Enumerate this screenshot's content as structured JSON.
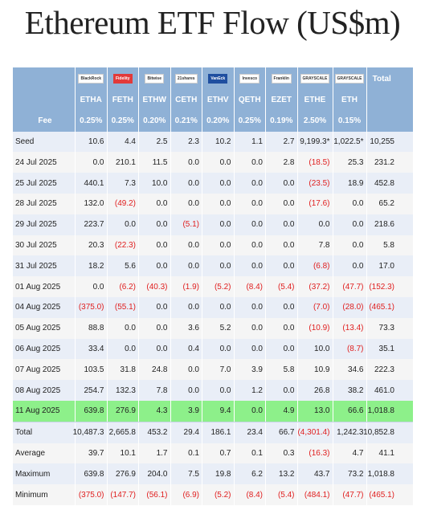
{
  "title": "Ethereum ETF Flow (US$m)",
  "chart_data": {
    "type": "table",
    "issuers": [
      "BlackRock",
      "Fidelity",
      "Bitwise",
      "21shares",
      "VanEck",
      "Invesco",
      "Franklin",
      "GRAYSCALE",
      "GRAYSCALE",
      "Total"
    ],
    "tickers": [
      "ETHA",
      "FETH",
      "ETHW",
      "CETH",
      "ETHV",
      "QETH",
      "EZET",
      "ETHE",
      "ETH",
      ""
    ],
    "fee": {
      "label": "Fee",
      "values": [
        "0.25%",
        "0.25%",
        "0.20%",
        "0.21%",
        "0.20%",
        "0.25%",
        "0.19%",
        "2.50%",
        "0.15%",
        ""
      ]
    },
    "rows": [
      {
        "label": "Seed",
        "values": [
          "10.6",
          "4.4",
          "2.5",
          "2.3",
          "10.2",
          "1.1",
          "2.7",
          "9,199.3*",
          "1,022.5*",
          "10,255"
        ]
      },
      {
        "label": "24 Jul 2025",
        "values": [
          "0.0",
          "210.1",
          "11.5",
          "0.0",
          "0.0",
          "0.0",
          "2.8",
          "(18.5)",
          "25.3",
          "231.2"
        ]
      },
      {
        "label": "25 Jul 2025",
        "values": [
          "440.1",
          "7.3",
          "10.0",
          "0.0",
          "0.0",
          "0.0",
          "0.0",
          "(23.5)",
          "18.9",
          "452.8"
        ]
      },
      {
        "label": "28 Jul 2025",
        "values": [
          "132.0",
          "(49.2)",
          "0.0",
          "0.0",
          "0.0",
          "0.0",
          "0.0",
          "(17.6)",
          "0.0",
          "65.2"
        ]
      },
      {
        "label": "29 Jul 2025",
        "values": [
          "223.7",
          "0.0",
          "0.0",
          "(5.1)",
          "0.0",
          "0.0",
          "0.0",
          "0.0",
          "0.0",
          "218.6"
        ]
      },
      {
        "label": "30 Jul 2025",
        "values": [
          "20.3",
          "(22.3)",
          "0.0",
          "0.0",
          "0.0",
          "0.0",
          "0.0",
          "7.8",
          "0.0",
          "5.8"
        ]
      },
      {
        "label": "31 Jul 2025",
        "values": [
          "18.2",
          "5.6",
          "0.0",
          "0.0",
          "0.0",
          "0.0",
          "0.0",
          "(6.8)",
          "0.0",
          "17.0"
        ]
      },
      {
        "label": "01 Aug 2025",
        "values": [
          "0.0",
          "(6.2)",
          "(40.3)",
          "(1.9)",
          "(5.2)",
          "(8.4)",
          "(5.4)",
          "(37.2)",
          "(47.7)",
          "(152.3)"
        ]
      },
      {
        "label": "04 Aug 2025",
        "values": [
          "(375.0)",
          "(55.1)",
          "0.0",
          "0.0",
          "0.0",
          "0.0",
          "0.0",
          "(7.0)",
          "(28.0)",
          "(465.1)"
        ]
      },
      {
        "label": "05 Aug 2025",
        "values": [
          "88.8",
          "0.0",
          "0.0",
          "3.6",
          "5.2",
          "0.0",
          "0.0",
          "(10.9)",
          "(13.4)",
          "73.3"
        ]
      },
      {
        "label": "06 Aug 2025",
        "values": [
          "33.4",
          "0.0",
          "0.0",
          "0.4",
          "0.0",
          "0.0",
          "0.0",
          "10.0",
          "(8.7)",
          "35.1"
        ]
      },
      {
        "label": "07 Aug 2025",
        "values": [
          "103.5",
          "31.8",
          "24.8",
          "0.0",
          "7.0",
          "3.9",
          "5.8",
          "10.9",
          "34.6",
          "222.3"
        ]
      },
      {
        "label": "08 Aug 2025",
        "values": [
          "254.7",
          "132.3",
          "7.8",
          "0.0",
          "0.0",
          "1.2",
          "0.0",
          "26.8",
          "38.2",
          "461.0"
        ]
      },
      {
        "label": "11 Aug 2025",
        "values": [
          "639.8",
          "276.9",
          "4.3",
          "3.9",
          "9.4",
          "0.0",
          "4.9",
          "13.0",
          "66.6",
          "1,018.8"
        ],
        "highlight": true
      }
    ],
    "stats": [
      {
        "label": "Total",
        "values": [
          "10,487.3",
          "2,665.8",
          "453.2",
          "29.4",
          "186.1",
          "23.4",
          "66.7",
          "(4,301.4)",
          "1,242.3",
          "10,852.8"
        ]
      },
      {
        "label": "Average",
        "values": [
          "39.7",
          "10.1",
          "1.7",
          "0.1",
          "0.7",
          "0.1",
          "0.3",
          "(16.3)",
          "4.7",
          "41.1"
        ]
      },
      {
        "label": "Maximum",
        "values": [
          "639.8",
          "276.9",
          "204.0",
          "7.5",
          "19.8",
          "6.2",
          "13.2",
          "43.7",
          "73.2",
          "1,018.8"
        ]
      },
      {
        "label": "Minimum",
        "values": [
          "(375.0)",
          "(147.7)",
          "(56.1)",
          "(6.9)",
          "(5.2)",
          "(8.4)",
          "(5.4)",
          "(484.1)",
          "(47.7)",
          "(465.1)"
        ]
      }
    ]
  }
}
